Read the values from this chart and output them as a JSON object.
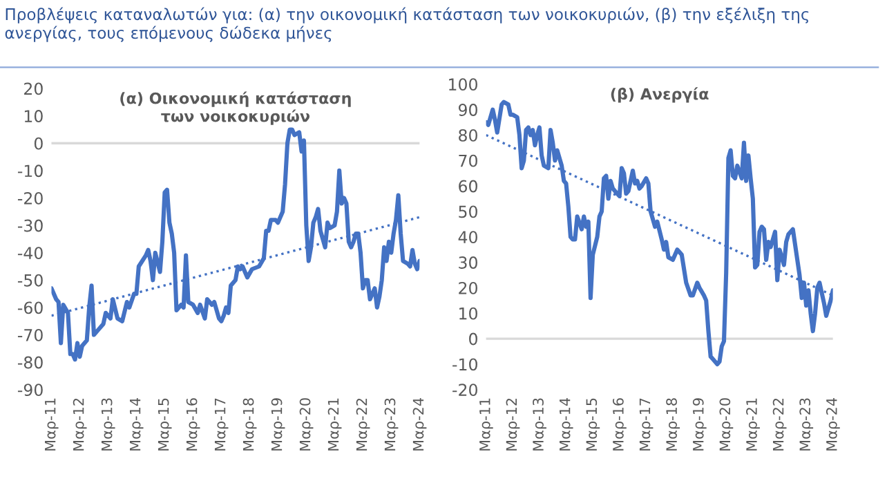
{
  "chart_data": [
    {
      "type": "line",
      "title": "Προβλέψεις καταναλωτών για: (α) την οικονομική κατάσταση των νοικοκυριών, (β) την εξέλιξη της ανεργίας, τους επόμενους δώδεκα μήνες",
      "subtitle": "(α) Οικονομική κατάσταση των νοικοκυριών",
      "x": [
        "2011-03",
        "2011-05",
        "2011-06",
        "2011-07",
        "2011-08",
        "2011-10",
        "2011-11",
        "2011-12",
        "2012-01",
        "2012-02",
        "2012-03",
        "2012-04",
        "2012-06",
        "2012-07",
        "2012-08",
        "2012-09",
        "2012-11",
        "2013-01",
        "2013-02",
        "2013-04",
        "2013-05",
        "2013-07",
        "2013-09",
        "2013-11",
        "2013-12",
        "2014-02",
        "2014-03",
        "2014-04",
        "2014-07",
        "2014-08",
        "2014-09",
        "2014-10",
        "2014-11",
        "2015-01",
        "2015-02",
        "2015-03",
        "2015-04",
        "2015-05",
        "2015-06",
        "2015-07",
        "2015-08",
        "2015-10",
        "2015-11",
        "2015-12",
        "2016-01",
        "2016-03",
        "2016-05",
        "2016-06",
        "2016-08",
        "2016-09",
        "2016-11",
        "2016-12",
        "2017-02",
        "2017-03",
        "2017-04",
        "2017-05",
        "2017-06",
        "2017-07",
        "2017-09",
        "2017-10",
        "2017-11",
        "2017-12",
        "2018-02",
        "2018-04",
        "2018-07",
        "2018-09",
        "2018-10",
        "2018-11",
        "2018-12",
        "2019-02",
        "2019-03",
        "2019-05",
        "2019-06",
        "2019-07",
        "2019-08",
        "2019-09",
        "2019-10",
        "2019-12",
        "2020-01",
        "2020-02",
        "2020-03",
        "2020-04",
        "2020-05",
        "2020-06",
        "2020-07",
        "2020-08",
        "2020-09",
        "2020-10",
        "2020-11",
        "2020-12",
        "2021-01",
        "2021-03",
        "2021-04",
        "2021-05",
        "2021-06",
        "2021-07",
        "2021-08",
        "2021-09",
        "2021-10",
        "2021-11",
        "2021-12",
        "2022-01",
        "2022-02",
        "2022-03",
        "2022-04",
        "2022-05",
        "2022-06",
        "2022-07",
        "2022-08",
        "2022-09",
        "2022-10",
        "2022-11",
        "2022-12",
        "2023-01",
        "2023-02",
        "2023-03",
        "2023-04",
        "2023-05",
        "2023-06",
        "2023-07",
        "2023-08",
        "2023-10",
        "2023-11",
        "2023-12",
        "2024-01",
        "2024-02",
        "2024-03"
      ],
      "series": [
        {
          "color": "#4472c4",
          "line_style": "solid",
          "values": [
            -53,
            -57,
            -58,
            -73,
            -59,
            -62,
            -77,
            -77,
            -79,
            -73,
            -78,
            -74,
            -72,
            -60,
            -52,
            -70,
            -68,
            -66,
            -62,
            -64,
            -57,
            -64,
            -65,
            -58,
            -60,
            -55,
            -55,
            -45,
            -41,
            -39,
            -43,
            -50,
            -40,
            -47,
            -36,
            -18,
            -17,
            -29,
            -33,
            -40,
            -61,
            -59,
            -60,
            -41,
            -58,
            -59,
            -62,
            -59,
            -64,
            -57,
            -59,
            -58,
            -64,
            -65,
            -63,
            -60,
            -62,
            -52,
            -50,
            -45,
            -46,
            -45,
            -49,
            -46,
            -45,
            -42,
            -32,
            -32,
            -28,
            -28,
            -29,
            -25,
            -15,
            0,
            5,
            5,
            3,
            4,
            -3,
            1,
            -30,
            -43,
            -38,
            -29,
            -27,
            -24,
            -32,
            -35,
            -38,
            -29,
            -31,
            -30,
            -25,
            -10,
            -22,
            -20,
            -22,
            -36,
            -38,
            -36,
            -33,
            -33,
            -40,
            -53,
            -50,
            -50,
            -57,
            -55,
            -53,
            -60,
            -56,
            -50,
            -38,
            -43,
            -36,
            -40,
            -33,
            -28,
            -19,
            -33,
            -43,
            -44,
            -45,
            -39,
            -44,
            -46,
            -43
          ]
        },
        {
          "color": "#4472c4",
          "line_style": "dotted",
          "x": [
            "2011-03",
            "2024-03"
          ],
          "values": [
            -63,
            -27
          ]
        }
      ],
      "xlim": [
        "2011-03",
        "2024-03"
      ],
      "xticks": [
        {
          "value": "2011-03",
          "label": "Μαρ-11"
        },
        {
          "value": "2012-03",
          "label": "Μαρ-12"
        },
        {
          "value": "2013-03",
          "label": "Μαρ-13"
        },
        {
          "value": "2014-03",
          "label": "Μαρ-14"
        },
        {
          "value": "2015-03",
          "label": "Μαρ-15"
        },
        {
          "value": "2016-03",
          "label": "Μαρ-16"
        },
        {
          "value": "2017-03",
          "label": "Μαρ-17"
        },
        {
          "value": "2018-03",
          "label": "Μαρ-18"
        },
        {
          "value": "2019-03",
          "label": "Μαρ-19"
        },
        {
          "value": "2020-03",
          "label": "Μαρ-20"
        },
        {
          "value": "2021-03",
          "label": "Μαρ-21"
        },
        {
          "value": "2022-03",
          "label": "Μαρ-22"
        },
        {
          "value": "2023-03",
          "label": "Μαρ-23"
        },
        {
          "value": "2024-03",
          "label": "Μαρ-24"
        }
      ],
      "ylim": [
        -90,
        20
      ],
      "yticks": [
        -90,
        -80,
        -70,
        -60,
        -50,
        -40,
        -30,
        -20,
        -10,
        0,
        10,
        20
      ],
      "ref_lines": [
        {
          "axis": "y",
          "value": 0,
          "color": "#d9d9d9"
        }
      ]
    },
    {
      "type": "line",
      "subtitle": "(β) Ανεργία",
      "x": [
        "2011-03",
        "2011-04",
        "2011-06",
        "2011-07",
        "2011-08",
        "2011-10",
        "2011-11",
        "2012-01",
        "2012-02",
        "2012-03",
        "2012-05",
        "2012-06",
        "2012-07",
        "2012-08",
        "2012-09",
        "2012-10",
        "2012-11",
        "2012-12",
        "2013-01",
        "2013-02",
        "2013-03",
        "2013-04",
        "2013-05",
        "2013-07",
        "2013-08",
        "2013-09",
        "2013-10",
        "2013-11",
        "2013-12",
        "2014-01",
        "2014-02",
        "2014-03",
        "2014-04",
        "2014-05",
        "2014-06",
        "2014-07",
        "2014-08",
        "2014-10",
        "2014-11",
        "2014-12",
        "2015-01",
        "2015-02",
        "2015-03",
        "2015-05",
        "2015-06",
        "2015-07",
        "2015-08",
        "2015-09",
        "2015-10",
        "2015-11",
        "2015-12",
        "2016-02",
        "2016-03",
        "2016-04",
        "2016-05",
        "2016-06",
        "2016-07",
        "2016-09",
        "2016-10",
        "2016-11",
        "2016-12",
        "2017-01",
        "2017-03",
        "2017-04",
        "2017-05",
        "2017-07",
        "2017-08",
        "2017-10",
        "2017-11",
        "2017-12",
        "2018-01",
        "2018-03",
        "2018-05",
        "2018-06",
        "2018-07",
        "2018-09",
        "2018-11",
        "2018-12",
        "2019-02",
        "2019-03",
        "2019-05",
        "2019-06",
        "2019-07",
        "2019-08",
        "2019-09",
        "2019-11",
        "2019-12",
        "2020-01",
        "2020-02",
        "2020-03",
        "2020-04",
        "2020-05",
        "2020-06",
        "2020-07",
        "2020-08",
        "2020-10",
        "2020-11",
        "2020-12",
        "2021-01",
        "2021-02",
        "2021-03",
        "2021-04",
        "2021-05",
        "2021-06",
        "2021-07",
        "2021-08",
        "2021-09",
        "2021-10",
        "2021-11",
        "2022-01",
        "2022-02",
        "2022-03",
        "2022-04",
        "2022-05",
        "2022-06",
        "2022-07",
        "2022-09",
        "2022-10",
        "2022-12",
        "2023-01",
        "2023-02",
        "2023-03",
        "2023-04",
        "2023-05",
        "2023-06",
        "2023-07",
        "2023-08",
        "2023-09",
        "2023-11",
        "2023-12",
        "2024-02",
        "2024-03"
      ],
      "series": [
        {
          "color": "#4472c4",
          "line_style": "solid",
          "values": [
            85,
            84,
            90,
            86,
            81,
            92,
            93,
            92,
            88,
            88,
            87,
            80,
            67,
            70,
            82,
            83,
            80,
            82,
            76,
            80,
            83,
            72,
            68,
            67,
            82,
            77,
            70,
            74,
            71,
            68,
            62,
            61,
            52,
            40,
            39,
            39,
            48,
            43,
            48,
            44,
            46,
            16,
            33,
            40,
            48,
            50,
            63,
            64,
            55,
            62,
            59,
            57,
            56,
            67,
            65,
            57,
            58,
            66,
            61,
            62,
            59,
            60,
            63,
            61,
            50,
            44,
            46,
            39,
            35,
            38,
            32,
            31,
            35,
            34,
            33,
            22,
            17,
            17,
            22,
            20,
            17,
            15,
            3,
            -7,
            -8,
            -10,
            -9,
            -3,
            -1,
            26,
            71,
            74,
            64,
            63,
            68,
            63,
            77,
            62,
            72,
            63,
            55,
            28,
            29,
            42,
            44,
            43,
            31,
            38,
            36,
            42,
            23,
            35,
            32,
            29,
            38,
            41,
            43,
            37,
            25,
            16,
            22,
            13,
            19,
            10,
            3,
            10,
            20,
            22,
            14,
            9,
            15,
            19
          ]
        },
        {
          "color": "#4472c4",
          "line_style": "dotted",
          "x": [
            "2011-03",
            "2024-03"
          ],
          "values": [
            80,
            17
          ]
        }
      ],
      "xlim": [
        "2011-03",
        "2024-03"
      ],
      "xticks": [
        {
          "value": "2011-03",
          "label": "Μαρ-11"
        },
        {
          "value": "2012-03",
          "label": "Μαρ-12"
        },
        {
          "value": "2013-03",
          "label": "Μαρ-13"
        },
        {
          "value": "2014-03",
          "label": "Μαρ-14"
        },
        {
          "value": "2015-03",
          "label": "Μαρ-15"
        },
        {
          "value": "2016-03",
          "label": "Μαρ-16"
        },
        {
          "value": "2017-03",
          "label": "Μαρ-17"
        },
        {
          "value": "2018-03",
          "label": "Μαρ-18"
        },
        {
          "value": "2019-03",
          "label": "Μαρ-19"
        },
        {
          "value": "2020-03",
          "label": "Μαρ-20"
        },
        {
          "value": "2021-03",
          "label": "Μαρ-21"
        },
        {
          "value": "2022-03",
          "label": "Μαρ-22"
        },
        {
          "value": "2023-03",
          "label": "Μαρ-23"
        },
        {
          "value": "2024-03",
          "label": "Μαρ-24"
        }
      ],
      "ylim": [
        -20,
        100
      ],
      "yticks": [
        -20,
        -10,
        0,
        10,
        20,
        30,
        40,
        50,
        60,
        70,
        80,
        90,
        100
      ],
      "ref_lines": [
        {
          "axis": "y",
          "value": 0,
          "color": "#d9d9d9"
        }
      ]
    }
  ]
}
